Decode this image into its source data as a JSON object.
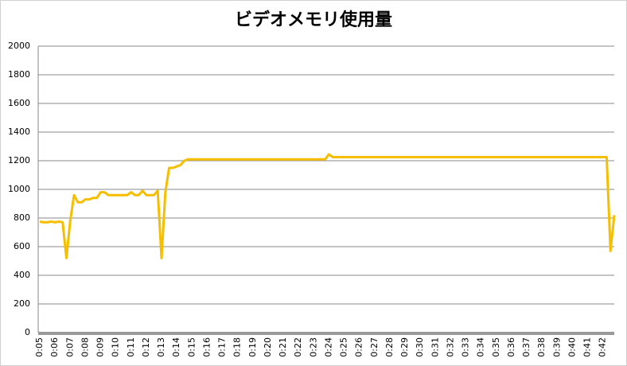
{
  "chart_data": {
    "type": "line",
    "title": "ビデオメモリ使用量",
    "categories": [
      "0:05",
      null,
      null,
      null,
      "0:06",
      null,
      null,
      null,
      "0:07",
      null,
      null,
      null,
      "0:08",
      null,
      null,
      null,
      "0:09",
      null,
      null,
      null,
      "0:10",
      null,
      null,
      null,
      "0:11",
      null,
      null,
      null,
      "0:12",
      null,
      null,
      null,
      "0:13",
      null,
      null,
      null,
      "0:14",
      null,
      null,
      null,
      "0:15",
      null,
      null,
      null,
      "0:16",
      null,
      null,
      null,
      "0:17",
      null,
      null,
      null,
      "0:18",
      null,
      null,
      null,
      "0:19",
      null,
      null,
      null,
      "0:20",
      null,
      null,
      null,
      "0:21",
      null,
      null,
      null,
      "0:22",
      null,
      null,
      null,
      "0:23",
      null,
      null,
      null,
      "0:24",
      null,
      null,
      null,
      "0:25",
      null,
      null,
      null,
      "0:26",
      null,
      null,
      null,
      "0:27",
      null,
      null,
      null,
      "0:28",
      null,
      null,
      null,
      "0:29",
      null,
      null,
      null,
      "0:30",
      null,
      null,
      null,
      "0:31",
      null,
      null,
      null,
      "0:32",
      null,
      null,
      null,
      "0:33",
      null,
      null,
      null,
      "0:34",
      null,
      null,
      null,
      "0:35",
      null,
      null,
      null,
      "0:36",
      null,
      null,
      null,
      "0:37",
      null,
      null,
      null,
      "0:38",
      null,
      null,
      null,
      "0:39",
      null,
      null,
      null,
      "0:40",
      null,
      null,
      null,
      "0:41",
      null,
      null,
      null,
      "0:42",
      null,
      null,
      null
    ],
    "series": [
      {
        "color": "#f5bf00",
        "values": [
          775,
          770,
          770,
          775,
          770,
          775,
          770,
          520,
          780,
          960,
          910,
          910,
          930,
          930,
          940,
          940,
          980,
          980,
          960,
          960,
          960,
          960,
          960,
          960,
          980,
          960,
          960,
          990,
          960,
          960,
          960,
          990,
          520,
          980,
          1150,
          1150,
          1160,
          1170,
          1200,
          1210,
          1210,
          1210,
          1210,
          1210,
          1210,
          1210,
          1210,
          1210,
          1210,
          1210,
          1210,
          1210,
          1210,
          1210,
          1210,
          1210,
          1210,
          1210,
          1210,
          1210,
          1210,
          1210,
          1210,
          1210,
          1210,
          1210,
          1210,
          1210,
          1210,
          1210,
          1210,
          1210,
          1210,
          1210,
          1210,
          1210,
          1245,
          1225,
          1225,
          1225,
          1225,
          1225,
          1225,
          1225,
          1225,
          1225,
          1225,
          1225,
          1225,
          1225,
          1225,
          1225,
          1225,
          1225,
          1225,
          1225,
          1225,
          1225,
          1225,
          1225,
          1225,
          1225,
          1225,
          1225,
          1225,
          1225,
          1225,
          1225,
          1225,
          1225,
          1225,
          1225,
          1225,
          1225,
          1225,
          1225,
          1225,
          1225,
          1225,
          1225,
          1225,
          1225,
          1225,
          1225,
          1225,
          1225,
          1225,
          1225,
          1225,
          1225,
          1225,
          1225,
          1225,
          1225,
          1225,
          1225,
          1225,
          1225,
          1225,
          1225,
          1225,
          1225,
          1225,
          1225,
          1225,
          1225,
          1225,
          1225,
          1225,
          1225,
          570,
          820
        ]
      }
    ],
    "ylim": [
      0,
      2000
    ],
    "yticks": [
      0,
      200,
      400,
      600,
      800,
      1000,
      1200,
      1400,
      1600,
      1800,
      2000
    ],
    "grid": true
  }
}
